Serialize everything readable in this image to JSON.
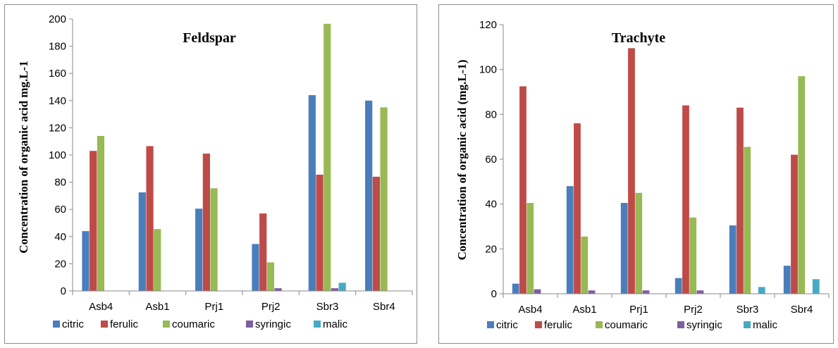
{
  "chart_data": [
    {
      "type": "bar",
      "title": "Feldspar",
      "ylabel": "Concentration of organic acid mg.L-1",
      "xlabel": "",
      "ylim": [
        0,
        200
      ],
      "yticks": [
        0,
        20,
        40,
        60,
        80,
        100,
        120,
        140,
        160,
        180,
        200
      ],
      "legend_position": "bottom",
      "categories": [
        "Asb4",
        "Asb1",
        "Prj1",
        "Prj2",
        "Sbr3",
        "Sbr4"
      ],
      "series": [
        {
          "name": "citric",
          "color": "#4a7ebb",
          "values": [
            44,
            72.5,
            60.5,
            34.5,
            144,
            140
          ]
        },
        {
          "name": "ferulic",
          "color": "#be4b48",
          "values": [
            103,
            106.5,
            101,
            57,
            85.5,
            84
          ]
        },
        {
          "name": "coumaric",
          "color": "#98b954",
          "values": [
            114,
            45.5,
            75.5,
            21,
            196.5,
            135
          ]
        },
        {
          "name": "syringic",
          "color": "#7d5fa0",
          "values": [
            0,
            0,
            0,
            2,
            2,
            0
          ]
        },
        {
          "name": "malic",
          "color": "#46aac5",
          "values": [
            0,
            0,
            0,
            0,
            6,
            0
          ]
        }
      ]
    },
    {
      "type": "bar",
      "title": "Trachyte",
      "ylabel": "Concentration of organic acid (mg.L-1)",
      "xlabel": "",
      "ylim": [
        0,
        120
      ],
      "yticks": [
        0,
        20,
        40,
        60,
        80,
        100,
        120
      ],
      "legend_position": "bottom",
      "categories": [
        "Asb4",
        "Asb1",
        "Prj1",
        "Prj2",
        "Sbr3",
        "Sbr4"
      ],
      "series": [
        {
          "name": "citric",
          "color": "#4a7ebb",
          "values": [
            4.5,
            48,
            40.5,
            7,
            30.5,
            12.5
          ]
        },
        {
          "name": "ferulic",
          "color": "#be4b48",
          "values": [
            92.5,
            76,
            109.5,
            84,
            83,
            62
          ]
        },
        {
          "name": "coumaric",
          "color": "#98b954",
          "values": [
            40.5,
            25.5,
            45,
            34,
            65.5,
            97
          ]
        },
        {
          "name": "syringic",
          "color": "#7d5fa0",
          "values": [
            2,
            1.5,
            1.5,
            1.5,
            0,
            0
          ]
        },
        {
          "name": "malic",
          "color": "#46aac5",
          "values": [
            0,
            0,
            0,
            0,
            3,
            6.5
          ]
        }
      ]
    }
  ]
}
